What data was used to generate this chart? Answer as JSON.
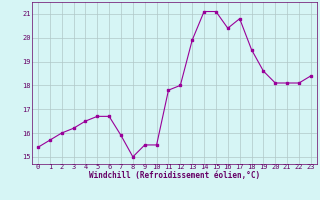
{
  "x": [
    0,
    1,
    2,
    3,
    4,
    5,
    6,
    7,
    8,
    9,
    10,
    11,
    12,
    13,
    14,
    15,
    16,
    17,
    18,
    19,
    20,
    21,
    22,
    23
  ],
  "y": [
    15.4,
    15.7,
    16.0,
    16.2,
    16.5,
    16.7,
    16.7,
    15.9,
    15.0,
    15.5,
    15.5,
    17.8,
    18.0,
    19.9,
    21.1,
    21.1,
    20.4,
    20.8,
    19.5,
    18.6,
    18.1,
    18.1,
    18.1,
    18.4
  ],
  "line_color": "#990099",
  "marker": "s",
  "marker_size": 2.0,
  "bg_color": "#d6f5f5",
  "grid_color": "#b0c8c8",
  "xlabel": "Windchill (Refroidissement éolien,°C)",
  "xlabel_color": "#660066",
  "tick_color": "#660066",
  "ylim": [
    14.7,
    21.5
  ],
  "xlim": [
    -0.5,
    23.5
  ],
  "yticks": [
    15,
    16,
    17,
    18,
    19,
    20,
    21
  ],
  "xticks": [
    0,
    1,
    2,
    3,
    4,
    5,
    6,
    7,
    8,
    9,
    10,
    11,
    12,
    13,
    14,
    15,
    16,
    17,
    18,
    19,
    20,
    21,
    22,
    23
  ]
}
